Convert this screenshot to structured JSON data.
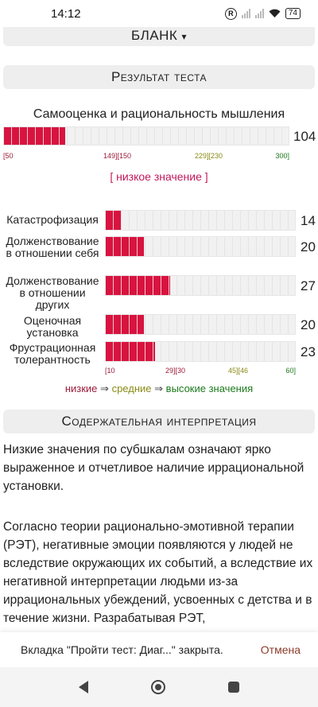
{
  "status_bar": {
    "time": "14:12",
    "r_badge": "R",
    "battery": "74"
  },
  "headers": {
    "blank": "Бланк",
    "blank_arrow": "▾",
    "result": "Результат теста",
    "interpretation": "Содержательная интерпретация"
  },
  "chart_data": [
    {
      "type": "bar",
      "title": "Самооценка и рациональность мышления",
      "categories": [
        "Самооценка и рациональность мышления"
      ],
      "values": [
        104
      ],
      "xlim": [
        50,
        300
      ],
      "tick_labels": [
        "[50",
        "149][150",
        "229][230",
        "300]"
      ],
      "level": "[ низкое значение ]"
    },
    {
      "type": "bar",
      "orientation": "horizontal",
      "categories": [
        "Катастрофизация",
        "Долженствование в отношении себя",
        "Долженствование в отношении других",
        "Оценочная установка",
        "Фрустрационная толерантность"
      ],
      "values": [
        14,
        20,
        27,
        20,
        23
      ],
      "xlim": [
        10,
        60
      ],
      "tick_labels": [
        "[10",
        "29][30",
        "45][46",
        "60]"
      ],
      "legend": {
        "low": "низкие",
        "arrow": "⇒",
        "mid": "средние",
        "high": "высокие значения"
      }
    }
  ],
  "main_tick_labels": [
    "[50",
    "149][150",
    "229][230",
    "300]"
  ],
  "sub_tick_labels": [
    "[10",
    "29][30",
    "45][46",
    "60]"
  ],
  "subscales": [
    {
      "label": "Катастрофизация",
      "value": "14"
    },
    {
      "label": "Долженствование в отношении себя",
      "value": "20"
    },
    {
      "label": "Долженствование в отношении других",
      "value": "27"
    },
    {
      "label": "Оценочная установка",
      "value": "20"
    },
    {
      "label": "Фрустрационная толерантность",
      "value": "23"
    }
  ],
  "main_score": "104",
  "level_label": "[ низкое значение ]",
  "legend": {
    "low": "низкие",
    "arrow": "⇒",
    "mid": "средние",
    "high": "высокие значения"
  },
  "interpretation": {
    "p1": "Низкие значения по субшкалам означают ярко выраженное и отчетливое наличие иррациональной установки.",
    "p2": "Согласно теории рационально-эмотивной терапии (РЭТ), негативные эмоции появляются у людей не вследствие окружающих их событий, а вследствие их негативной интерпретации людьми из-за иррациональных убеждений, усвоенных с детства и в течение жизни. Разрабатывая РЭТ,"
  },
  "toast": {
    "message": "Вкладка \"Пройти тест: Диаг...\" закрыта.",
    "action": "Отмена"
  },
  "colors": {
    "bar_fill": "#d7143f",
    "bar_empty": "#f1f1f1",
    "low": "#9b1b3a",
    "mid": "#8a8a16",
    "high": "#1b7a1b"
  },
  "nav_icons": [
    "back-icon",
    "home-icon",
    "recent-apps-icon"
  ]
}
